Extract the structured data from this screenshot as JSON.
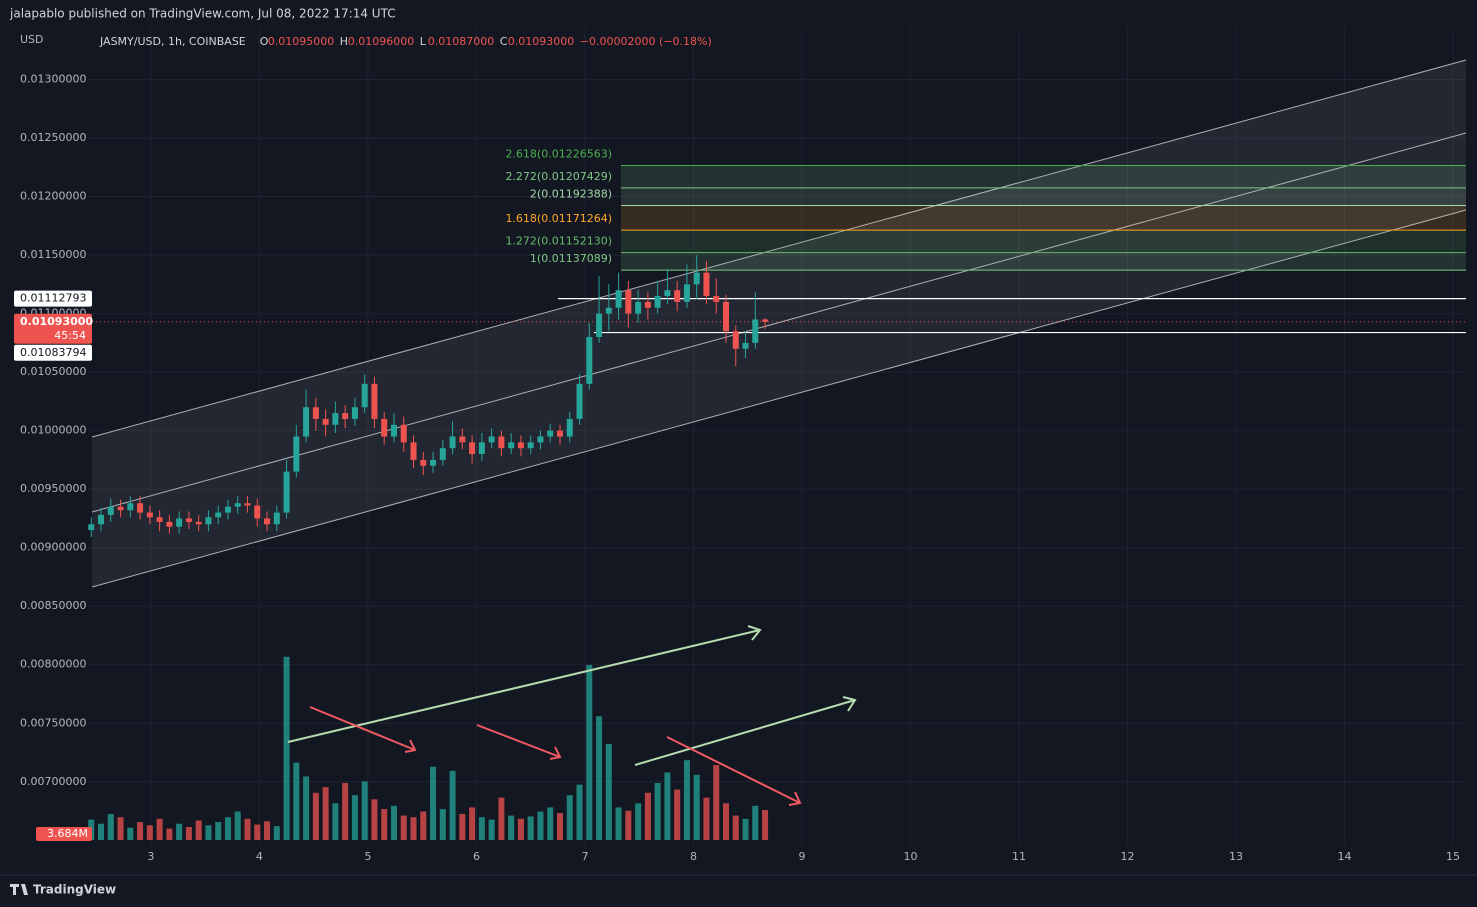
{
  "header": {
    "publisher": "jalapablo published on TradingView.com, Jul 08, 2022 17:14 UTC",
    "logo": "TradingView"
  },
  "chart_data": {
    "type": "candlestick",
    "currency": "USD",
    "symbol": "JASMY/USD, 1h, COINBASE",
    "ohlc": [
      {
        "key": "O",
        "value": 0.01095,
        "label": "0.01095000"
      },
      {
        "key": "H",
        "value": 0.01096,
        "label": "0.01096000"
      },
      {
        "key": "L",
        "value": 0.01087,
        "label": "0.01087000"
      },
      {
        "key": "C",
        "value": 0.01093,
        "label": "0.01093000"
      }
    ],
    "change": "−0.00002000 (−0.18%)",
    "up_color": "#26a69a",
    "down_color": "#ef5350",
    "xlim": [
      2.42,
      15.12
    ],
    "xticks": [
      3,
      4,
      5,
      6,
      7,
      8,
      9,
      10,
      11,
      12,
      13,
      14,
      15
    ],
    "ylim": [
      0.00646,
      0.01344
    ],
    "yticks": [
      {
        "value": 0.013,
        "label": "0.01300000"
      },
      {
        "value": 0.0125,
        "label": "0.01250000"
      },
      {
        "value": 0.012,
        "label": "0.01200000"
      },
      {
        "value": 0.0115,
        "label": "0.01150000"
      },
      {
        "value": 0.011,
        "label": "0.01100000"
      },
      {
        "value": 0.0105,
        "label": "0.01050000"
      },
      {
        "value": 0.01,
        "label": "0.01000000"
      },
      {
        "value": 0.0095,
        "label": "0.00950000"
      },
      {
        "value": 0.009,
        "label": "0.00900000"
      },
      {
        "value": 0.0085,
        "label": "0.00850000"
      },
      {
        "value": 0.008,
        "label": "0.00800000"
      },
      {
        "value": 0.0075,
        "label": "0.00750000"
      },
      {
        "value": 0.007,
        "label": "0.00700000"
      }
    ],
    "grid": true,
    "x": [
      2.45,
      2.54,
      2.63,
      2.72,
      2.81,
      2.9,
      2.99,
      3.08,
      3.17,
      3.26,
      3.35,
      3.44,
      3.53,
      3.62,
      3.71,
      3.8,
      3.89,
      3.98,
      4.07,
      4.16,
      4.25,
      4.34,
      4.43,
      4.52,
      4.61,
      4.7,
      4.79,
      4.88,
      4.97,
      5.06,
      5.15,
      5.24,
      5.33,
      5.42,
      5.51,
      5.6,
      5.69,
      5.78,
      5.87,
      5.96,
      6.05,
      6.14,
      6.23,
      6.32,
      6.41,
      6.5,
      6.59,
      6.68,
      6.77,
      6.86,
      6.95,
      7.04,
      7.13,
      7.22,
      7.31,
      7.4,
      7.49,
      7.58,
      7.67,
      7.76,
      7.85,
      7.94,
      8.03,
      8.12,
      8.21,
      8.3,
      8.39,
      8.48,
      8.57,
      8.66
    ],
    "candles": [
      [
        0.00915,
        0.00926,
        0.00909,
        0.0092
      ],
      [
        0.0092,
        0.00934,
        0.00914,
        0.00928
      ],
      [
        0.00928,
        0.00942,
        0.00922,
        0.00935
      ],
      [
        0.00935,
        0.00941,
        0.00926,
        0.00932
      ],
      [
        0.00932,
        0.00944,
        0.00926,
        0.00938
      ],
      [
        0.00938,
        0.00944,
        0.00924,
        0.0093
      ],
      [
        0.0093,
        0.00936,
        0.0092,
        0.00926
      ],
      [
        0.00926,
        0.00932,
        0.00914,
        0.00922
      ],
      [
        0.00922,
        0.00928,
        0.00912,
        0.00918
      ],
      [
        0.00918,
        0.00931,
        0.00912,
        0.00925
      ],
      [
        0.00925,
        0.00931,
        0.00916,
        0.00922
      ],
      [
        0.00922,
        0.00928,
        0.00914,
        0.0092
      ],
      [
        0.0092,
        0.00932,
        0.00914,
        0.00926
      ],
      [
        0.00926,
        0.00936,
        0.0092,
        0.0093
      ],
      [
        0.0093,
        0.00941,
        0.00924,
        0.00935
      ],
      [
        0.00935,
        0.00944,
        0.00929,
        0.00938
      ],
      [
        0.00938,
        0.00944,
        0.0093,
        0.00936
      ],
      [
        0.00936,
        0.00942,
        0.00918,
        0.00925
      ],
      [
        0.00925,
        0.00931,
        0.00914,
        0.0092
      ],
      [
        0.0092,
        0.00936,
        0.00914,
        0.0093
      ],
      [
        0.0093,
        0.00975,
        0.00925,
        0.00965
      ],
      [
        0.00965,
        0.01005,
        0.0096,
        0.00995
      ],
      [
        0.00995,
        0.01035,
        0.0099,
        0.0102
      ],
      [
        0.0102,
        0.01028,
        0.01,
        0.0101
      ],
      [
        0.0101,
        0.01018,
        0.00995,
        0.01005
      ],
      [
        0.01005,
        0.01025,
        0.00998,
        0.01015
      ],
      [
        0.01015,
        0.01022,
        0.01002,
        0.0101
      ],
      [
        0.0101,
        0.01028,
        0.01004,
        0.0102
      ],
      [
        0.0102,
        0.01048,
        0.01015,
        0.0104
      ],
      [
        0.0104,
        0.01046,
        0.01002,
        0.0101
      ],
      [
        0.0101,
        0.01016,
        0.00988,
        0.00995
      ],
      [
        0.00995,
        0.01015,
        0.0099,
        0.01005
      ],
      [
        0.01005,
        0.01012,
        0.00982,
        0.0099
      ],
      [
        0.0099,
        0.00996,
        0.00968,
        0.00975
      ],
      [
        0.00975,
        0.00982,
        0.00962,
        0.0097
      ],
      [
        0.0097,
        0.00982,
        0.00964,
        0.00975
      ],
      [
        0.00975,
        0.00992,
        0.0097,
        0.00985
      ],
      [
        0.00985,
        0.01008,
        0.0098,
        0.00995
      ],
      [
        0.00995,
        0.01002,
        0.00984,
        0.0099
      ],
      [
        0.0099,
        0.00996,
        0.00972,
        0.0098
      ],
      [
        0.0098,
        0.00998,
        0.00974,
        0.0099
      ],
      [
        0.0099,
        0.01002,
        0.00985,
        0.00995
      ],
      [
        0.00995,
        0.01,
        0.00978,
        0.00985
      ],
      [
        0.00985,
        0.00998,
        0.0098,
        0.0099
      ],
      [
        0.0099,
        0.00996,
        0.00978,
        0.00985
      ],
      [
        0.00985,
        0.00996,
        0.0098,
        0.0099
      ],
      [
        0.0099,
        0.01,
        0.00984,
        0.00995
      ],
      [
        0.00995,
        0.01006,
        0.0099,
        0.01
      ],
      [
        0.01,
        0.01005,
        0.00988,
        0.00995
      ],
      [
        0.00995,
        0.01016,
        0.0099,
        0.0101
      ],
      [
        0.0101,
        0.01048,
        0.01005,
        0.0104
      ],
      [
        0.0104,
        0.01092,
        0.01035,
        0.0108
      ],
      [
        0.0108,
        0.01132,
        0.01075,
        0.011
      ],
      [
        0.011,
        0.01125,
        0.01085,
        0.01105
      ],
      [
        0.01105,
        0.01135,
        0.01095,
        0.0112
      ],
      [
        0.0112,
        0.01128,
        0.01088,
        0.011
      ],
      [
        0.011,
        0.0112,
        0.01092,
        0.0111
      ],
      [
        0.0111,
        0.01118,
        0.01095,
        0.01105
      ],
      [
        0.01105,
        0.01128,
        0.011,
        0.01115
      ],
      [
        0.01115,
        0.01138,
        0.01108,
        0.0112
      ],
      [
        0.0112,
        0.01128,
        0.01102,
        0.0111
      ],
      [
        0.0111,
        0.01142,
        0.01105,
        0.01125
      ],
      [
        0.01125,
        0.0115,
        0.01112,
        0.01135
      ],
      [
        0.01135,
        0.01145,
        0.01108,
        0.01115
      ],
      [
        0.01115,
        0.0113,
        0.011,
        0.0111
      ],
      [
        0.0111,
        0.01116,
        0.01075,
        0.01085
      ],
      [
        0.01085,
        0.0109,
        0.01055,
        0.0107
      ],
      [
        0.0107,
        0.01085,
        0.01062,
        0.01075
      ],
      [
        0.01075,
        0.01118,
        0.0107,
        0.01095
      ],
      [
        0.01095,
        0.01096,
        0.01087,
        0.01093
      ]
    ],
    "volume_ylim": [
      0,
      28
    ],
    "volumes": [
      2.5,
      2.0,
      3.2,
      2.8,
      1.5,
      2.2,
      1.8,
      2.6,
      1.4,
      2.0,
      1.6,
      2.4,
      1.8,
      2.2,
      2.8,
      3.5,
      2.6,
      1.9,
      2.3,
      1.7,
      22.5,
      9.5,
      7.8,
      5.8,
      6.5,
      4.5,
      7.0,
      5.5,
      7.2,
      5.0,
      3.8,
      4.2,
      3.0,
      2.8,
      3.5,
      9.0,
      3.8,
      8.5,
      3.2,
      4.0,
      2.8,
      2.5,
      5.2,
      3.0,
      2.6,
      2.9,
      3.5,
      4.0,
      3.3,
      5.5,
      6.8,
      21.5,
      15.2,
      11.8,
      4.0,
      3.6,
      4.5,
      5.8,
      7.0,
      8.3,
      6.2,
      9.8,
      8.0,
      5.2,
      9.2,
      4.5,
      3.0,
      2.6,
      4.2,
      3.684
    ],
    "last_volume_label": "3.684M",
    "price_labels": [
      {
        "value": 0.01112793,
        "label": "0.01112793"
      },
      {
        "value": 0.01093,
        "label": "0.01093000"
      },
      {
        "value": 0.01083794,
        "label": "0.01083794"
      }
    ],
    "countdown": "45:54",
    "fib_levels": [
      {
        "value": 0.01137089,
        "label": "1(0.01137089)",
        "color": "#81c784"
      },
      {
        "value": 0.0115213,
        "label": "1.272(0.01152130)",
        "color": "#66bb6a"
      },
      {
        "value": 0.01171264,
        "label": "1.618(0.01171264)",
        "color": "#ffa726"
      },
      {
        "value": 0.01192388,
        "label": "2(0.01192388)",
        "color": "#a5d6a7"
      },
      {
        "value": 0.01207429,
        "label": "2.272(0.01207429)",
        "color": "#81c784"
      },
      {
        "value": 0.01226563,
        "label": "2.618(0.01226563)",
        "color": "#4caf50"
      }
    ]
  }
}
